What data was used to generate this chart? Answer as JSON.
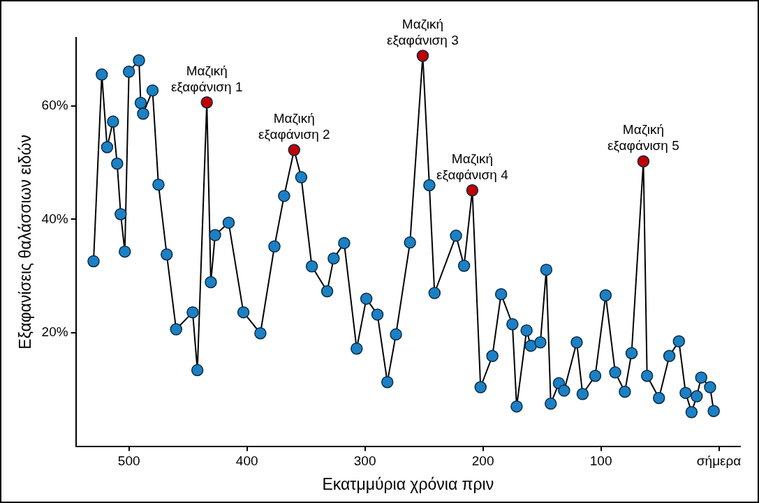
{
  "chart_data": {
    "type": "line",
    "xlabel": "Εκατμμύρια χρόνια πριν",
    "ylabel": "Εξαφανίσεις θαλάσσιων ειδών",
    "xlim": [
      545,
      -18
    ],
    "ylim": [
      0,
      72
    ],
    "xticks": [
      500,
      400,
      300,
      200,
      100,
      {
        "value": 0,
        "label": "σήμερα"
      }
    ],
    "yticks": [
      {
        "value": 20,
        "label": "20%"
      },
      {
        "value": 40,
        "label": "40%"
      },
      {
        "value": 60,
        "label": "60%"
      }
    ],
    "marker": "circle",
    "line_style": "solid",
    "legend": false,
    "series": [
      {
        "color": "#000000",
        "colors": [
          "#1b80c4",
          "#1b80c4",
          "#1b80c4",
          "#1b80c4",
          "#1b80c4",
          "#1b80c4",
          "#1b80c4",
          "#1b80c4",
          "#1b80c4",
          "#1b80c4",
          "#1b80c4",
          "#1b80c4",
          "#1b80c4",
          "#1b80c4",
          "#1b80c4",
          "#1b80c4",
          "#1b80c4",
          "#c00000",
          "#1b80c4",
          "#1b80c4",
          "#1b80c4",
          "#1b80c4",
          "#1b80c4",
          "#1b80c4",
          "#1b80c4",
          "#c00000",
          "#1b80c4",
          "#1b80c4",
          "#1b80c4",
          "#1b80c4",
          "#1b80c4",
          "#1b80c4",
          "#1b80c4",
          "#1b80c4",
          "#1b80c4",
          "#1b80c4",
          "#1b80c4",
          "#c00000",
          "#1b80c4",
          "#1b80c4",
          "#1b80c4",
          "#1b80c4",
          "#c00000",
          "#1b80c4",
          "#1b80c4",
          "#1b80c4",
          "#1b80c4",
          "#1b80c4",
          "#1b80c4",
          "#1b80c4",
          "#1b80c4",
          "#1b80c4",
          "#1b80c4",
          "#1b80c4",
          "#1b80c4",
          "#1b80c4",
          "#1b80c4",
          "#1b80c4",
          "#1b80c4",
          "#1b80c4",
          "#1b80c4",
          "#1b80c4",
          "#c00000",
          "#1b80c4",
          "#1b80c4",
          "#1b80c4",
          "#1b80c4",
          "#1b80c4",
          "#1b80c4",
          "#1b80c4",
          "#1b80c4",
          "#1b80c4",
          "#1b80c4"
        ],
        "x": [
          530,
          523,
          518.5,
          513.5,
          510,
          507,
          503.5,
          500,
          491.5,
          490,
          488,
          480,
          475,
          468,
          460,
          446,
          442,
          434,
          430.6,
          427,
          415.5,
          403,
          388.6,
          376.7,
          368.5,
          360,
          354,
          345,
          332,
          326.5,
          317.6,
          307,
          298.8,
          289.4,
          281,
          273.7,
          261.8,
          251,
          245.4,
          241,
          222.8,
          216,
          209,
          202,
          192,
          184.6,
          175,
          171.4,
          163,
          159.4,
          151.3,
          146.3,
          142.5,
          135.6,
          131.2,
          120.5,
          115.5,
          104.8,
          96,
          87.9,
          79.7,
          74,
          64,
          60.9,
          50.8,
          42,
          33.9,
          28.2,
          23.2,
          18.8,
          15,
          7.5,
          4.4
        ],
        "values": [
          32.6,
          65.5,
          52.7,
          57.2,
          49.8,
          40.9,
          34.3,
          66,
          68,
          60.5,
          58.6,
          62.7,
          46.1,
          33.8,
          20.6,
          23.6,
          13.4,
          60.6,
          28.9,
          37.2,
          39.4,
          23.6,
          19.9,
          35.2,
          44.1,
          52.2,
          47.4,
          31.7,
          27.3,
          33.1,
          35.8,
          17.2,
          26,
          23.2,
          11.3,
          19.7,
          35.9,
          68.8,
          46,
          27,
          37.1,
          31.8,
          45.1,
          10.4,
          15.9,
          26.8,
          21.5,
          7,
          20.4,
          17.7,
          18.3,
          31.1,
          7.5,
          11.1,
          9.8,
          18.3,
          9.2,
          12.4,
          26.6,
          13,
          9.6,
          16.4,
          50.2,
          12.4,
          8.5,
          15.9,
          18.5,
          9.4,
          6,
          8.8,
          12.1,
          10.4,
          6.2
        ]
      }
    ],
    "annotations": [
      {
        "text": "Μαζική\nεξαφάνιση 1",
        "x": 434,
        "y": 60.6
      },
      {
        "text": "Μαζική\nεξαφάνιση 2",
        "x": 360,
        "y": 52.2
      },
      {
        "text": "Μαζική\nεξαφάνιση 3",
        "x": 251,
        "y": 68.8
      },
      {
        "text": "Μαζική\nεξαφάνιση 4",
        "x": 209,
        "y": 45.1
      },
      {
        "text": "Μαζική\nεξαφάνιση 5",
        "x": 64,
        "y": 50.2
      }
    ]
  }
}
